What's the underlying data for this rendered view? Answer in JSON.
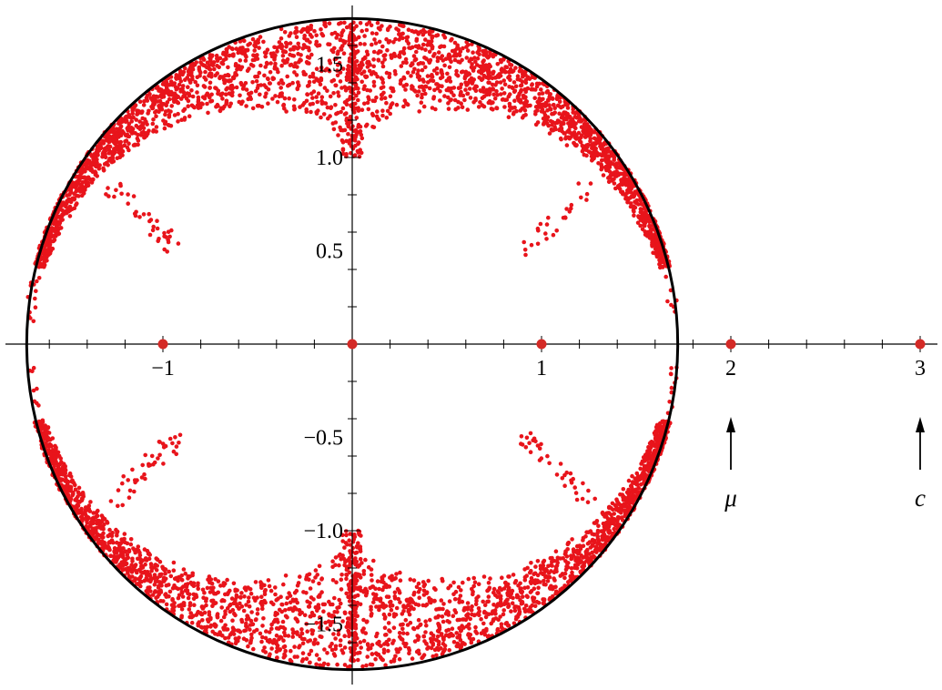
{
  "chart_data": {
    "type": "scatter",
    "xlim": [
      -1.74,
      3.08
    ],
    "ylim": [
      -1.8,
      1.8
    ],
    "grid": false,
    "x_ticks": [
      {
        "value": -1,
        "label": "−1"
      },
      {
        "value": 1,
        "label": "1"
      },
      {
        "value": 2,
        "label": "2"
      },
      {
        "value": 3,
        "label": "3"
      }
    ],
    "y_ticks": [
      {
        "value": 1.5,
        "label": "1.5"
      },
      {
        "value": 1.0,
        "label": "1.0"
      },
      {
        "value": 0.5,
        "label": "0.5"
      },
      {
        "value": -0.5,
        "label": "−0.5"
      },
      {
        "value": -1.0,
        "label": "−1.0"
      },
      {
        "value": -1.5,
        "label": "−1.5"
      }
    ],
    "circle": {
      "center": [
        0,
        0
      ],
      "radius": 1.732
    },
    "highlighted_points": [
      {
        "x": -1,
        "y": 0
      },
      {
        "x": 0,
        "y": 0
      },
      {
        "x": 1,
        "y": 0
      },
      {
        "x": 2,
        "y": 0
      },
      {
        "x": 3,
        "y": 0
      }
    ],
    "annotations": [
      {
        "x": 2,
        "label": "μ"
      },
      {
        "x": 3,
        "label": "c"
      }
    ],
    "point_cloud": {
      "description_regions": "dense annulus 0.9*R..R, angular gaps near ±(0..14°) and ±(166..180°); secondary fingers at x≈±1, |y|≈0.5..0.8; dense spine along x≈0, |y|≥1.0",
      "upper_band_min_radius": 0.95,
      "seed": 7
    },
    "colors": {
      "points": "#e8141b",
      "axes": "#000000",
      "circle": "#000000"
    }
  }
}
